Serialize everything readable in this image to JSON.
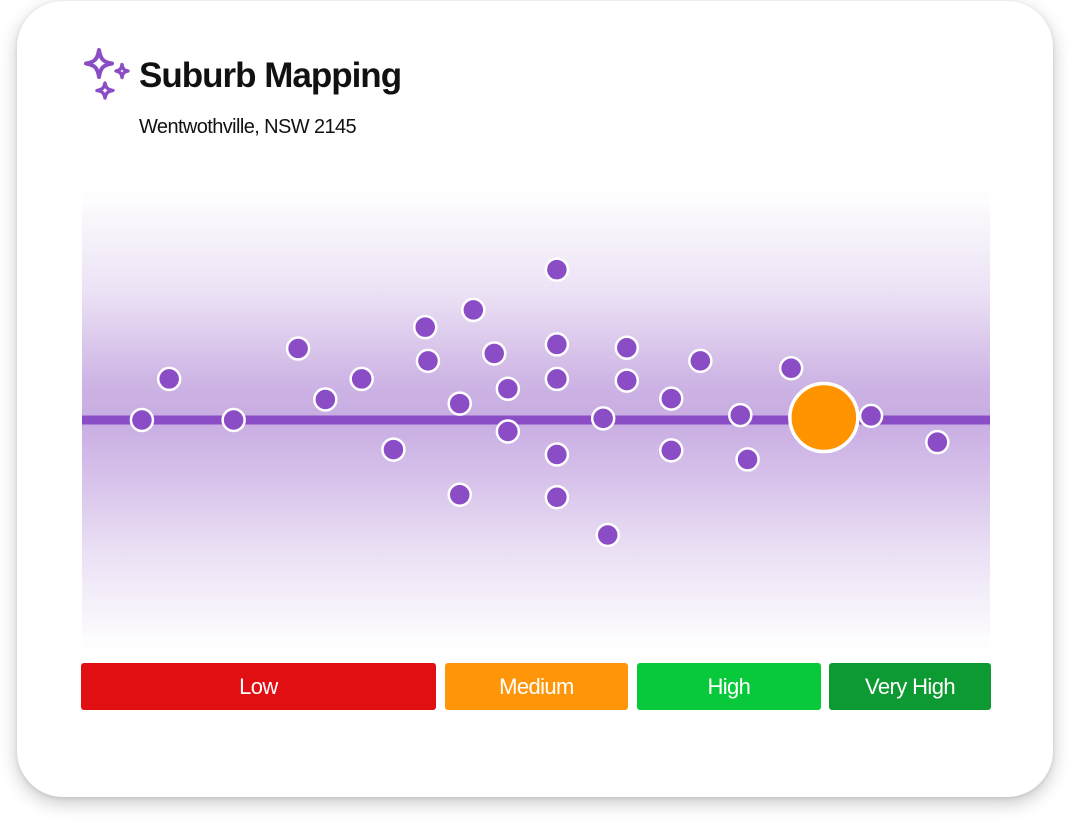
{
  "header": {
    "title": "Suburb Mapping",
    "subtitle": "Wentwothville, NSW 2145",
    "logo_icon": "sparkles-icon"
  },
  "colors": {
    "point": "#8a4dc6",
    "point_stroke": "#ffffff",
    "baseline": "#8a4dc6",
    "highlight": "#ff9400",
    "low": "#e10f12",
    "medium": "#ff960a",
    "high": "#08c93a",
    "very_high": "#0e9a33"
  },
  "chart_data": {
    "type": "scatter",
    "title": "",
    "xlabel": "",
    "ylabel": "",
    "xlim": [
      0,
      100
    ],
    "ylim": [
      -28,
      28
    ],
    "grid": false,
    "baseline": 0,
    "points": [
      {
        "x": 6.6,
        "y": 0
      },
      {
        "x": 9.6,
        "y": 5
      },
      {
        "x": 16.7,
        "y": 0
      },
      {
        "x": 23.8,
        "y": 8.7
      },
      {
        "x": 26.8,
        "y": 2.5
      },
      {
        "x": 30.8,
        "y": 5
      },
      {
        "x": 34.3,
        "y": -3.6
      },
      {
        "x": 37.8,
        "y": 11.3
      },
      {
        "x": 38.1,
        "y": 7.2
      },
      {
        "x": 41.6,
        "y": 2
      },
      {
        "x": 41.6,
        "y": -9.1
      },
      {
        "x": 43.1,
        "y": 13.4
      },
      {
        "x": 45.4,
        "y": 8.1
      },
      {
        "x": 46.9,
        "y": 3.8
      },
      {
        "x": 46.9,
        "y": -1.4
      },
      {
        "x": 52.3,
        "y": 18.3
      },
      {
        "x": 52.3,
        "y": 9.2
      },
      {
        "x": 52.3,
        "y": 5
      },
      {
        "x": 52.3,
        "y": -4.2
      },
      {
        "x": 52.3,
        "y": -9.4
      },
      {
        "x": 57.4,
        "y": 0.2
      },
      {
        "x": 57.9,
        "y": -14
      },
      {
        "x": 60,
        "y": 8.8
      },
      {
        "x": 60,
        "y": 4.8
      },
      {
        "x": 64.9,
        "y": 2.6
      },
      {
        "x": 64.9,
        "y": -3.7
      },
      {
        "x": 68.1,
        "y": 7.2
      },
      {
        "x": 72.5,
        "y": 0.6
      },
      {
        "x": 73.3,
        "y": -4.8
      },
      {
        "x": 78.1,
        "y": 6.3
      },
      {
        "x": 86.9,
        "y": 0.5
      },
      {
        "x": 94.2,
        "y": -2.7
      }
    ],
    "highlight_point": {
      "x": 81.7,
      "y": 0.3
    },
    "bands": [
      {
        "label": "Low",
        "from": 0,
        "to": 39
      },
      {
        "label": "Medium",
        "from": 40,
        "to": 60.1
      },
      {
        "label": "High",
        "from": 61.1,
        "to": 81.3
      },
      {
        "label": "Very High",
        "from": 82.2,
        "to": 100
      }
    ]
  }
}
